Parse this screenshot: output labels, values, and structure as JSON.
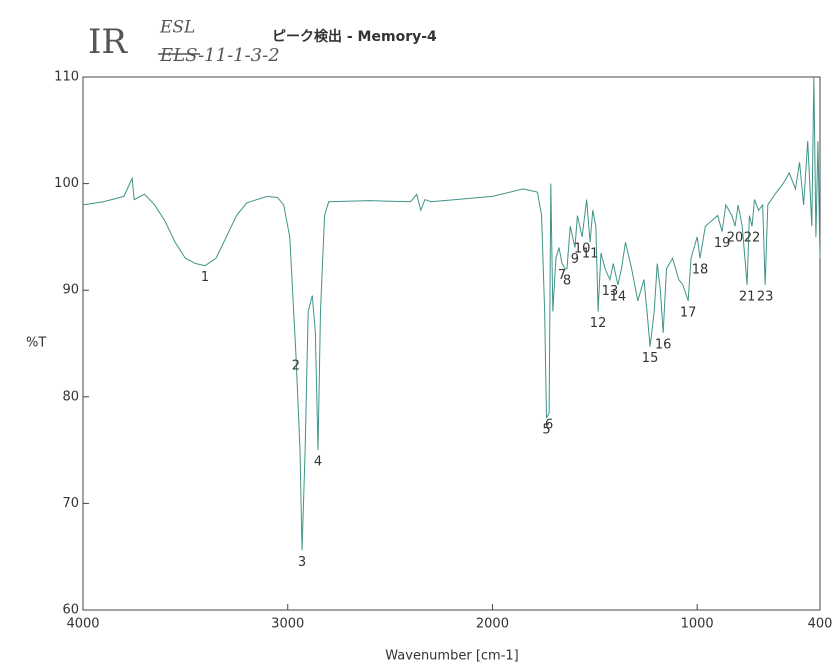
{
  "chart_data": {
    "type": "line",
    "title": "ピーク検出 - Memory-4",
    "handwritten_notes": [
      "IR",
      "ESL",
      "ELS-11-1-3-2"
    ],
    "xlabel": "Wavenumber [cm-1]",
    "ylabel": "%T",
    "xlim": [
      4000,
      400
    ],
    "xticks": [
      4000,
      3000,
      2000,
      1000,
      400
    ],
    "ylim": [
      60,
      110
    ],
    "yticks": [
      60,
      70,
      80,
      90,
      100,
      110
    ],
    "grid": false,
    "color": "#3f9488",
    "x": [
      4000,
      3900,
      3800,
      3760,
      3750,
      3700,
      3650,
      3600,
      3550,
      3500,
      3450,
      3404,
      3350,
      3300,
      3250,
      3200,
      3100,
      3050,
      3020,
      2990,
      2960,
      2940,
      2930,
      2915,
      2900,
      2880,
      2865,
      2852,
      2840,
      2820,
      2800,
      2600,
      2400,
      2370,
      2350,
      2330,
      2300,
      2000,
      1850,
      1780,
      1760,
      1745,
      1736,
      1723,
      1715,
      1705,
      1690,
      1675,
      1660,
      1645,
      1636,
      1620,
      1597,
      1585,
      1562,
      1540,
      1523,
      1510,
      1495,
      1484,
      1470,
      1450,
      1426,
      1410,
      1387,
      1370,
      1350,
      1320,
      1290,
      1260,
      1245,
      1230,
      1210,
      1195,
      1180,
      1166,
      1150,
      1120,
      1090,
      1070,
      1044,
      1030,
      1000,
      986,
      960,
      930,
      900,
      878,
      860,
      830,
      815,
      800,
      780,
      756,
      745,
      732,
      720,
      700,
      680,
      668,
      655,
      620,
      580,
      550,
      520,
      500,
      480,
      460,
      440,
      430,
      420,
      410,
      400
    ],
    "values": [
      98,
      98.3,
      98.8,
      100.5,
      98.5,
      99,
      98,
      96.5,
      94.5,
      93,
      92.5,
      92.3,
      93,
      95,
      97,
      98.2,
      98.8,
      98.7,
      98,
      95,
      84,
      75,
      65.6,
      75,
      88,
      89.5,
      86,
      75,
      88,
      97,
      98.3,
      98.4,
      98.3,
      99,
      97.5,
      98.5,
      98.3,
      98.8,
      99.5,
      99.2,
      97,
      88,
      78,
      78.5,
      100,
      88,
      93,
      94,
      92.5,
      92,
      92,
      96,
      94,
      97,
      95,
      98.5,
      94.5,
      97.5,
      96,
      88,
      93.5,
      92,
      91,
      92.5,
      90.5,
      92,
      94.5,
      92,
      89,
      91,
      88,
      84.7,
      88,
      92.5,
      90,
      86,
      92,
      93,
      91,
      90.5,
      89,
      93,
      95,
      93,
      96,
      96.5,
      97,
      95.5,
      98,
      97,
      96,
      98,
      96,
      90.5,
      97,
      96,
      98.5,
      97.5,
      98,
      90.5,
      98,
      99,
      100,
      101,
      99.5,
      102,
      98,
      104,
      96,
      110,
      95,
      104,
      93
    ],
    "peaks": [
      {
        "label": "1",
        "x": 3404,
        "y": 92.3
      },
      {
        "label": "2",
        "x": 2960,
        "y": 84
      },
      {
        "label": "3",
        "x": 2930,
        "y": 65.6
      },
      {
        "label": "4",
        "x": 2852,
        "y": 75
      },
      {
        "label": "5",
        "x": 1736,
        "y": 78
      },
      {
        "label": "6",
        "x": 1723,
        "y": 78.5
      },
      {
        "label": "7",
        "x": 1660,
        "y": 92.5
      },
      {
        "label": "8",
        "x": 1636,
        "y": 92
      },
      {
        "label": "9",
        "x": 1597,
        "y": 94
      },
      {
        "label": "10",
        "x": 1562,
        "y": 95
      },
      {
        "label": "11",
        "x": 1523,
        "y": 94.5
      },
      {
        "label": "12",
        "x": 1484,
        "y": 88
      },
      {
        "label": "13",
        "x": 1426,
        "y": 91
      },
      {
        "label": "14",
        "x": 1387,
        "y": 90.5
      },
      {
        "label": "15",
        "x": 1230,
        "y": 84.7
      },
      {
        "label": "16",
        "x": 1166,
        "y": 86
      },
      {
        "label": "17",
        "x": 1044,
        "y": 89
      },
      {
        "label": "18",
        "x": 986,
        "y": 93
      },
      {
        "label": "19",
        "x": 878,
        "y": 95.5
      },
      {
        "label": "20",
        "x": 815,
        "y": 96
      },
      {
        "label": "21",
        "x": 756,
        "y": 90.5
      },
      {
        "label": "22",
        "x": 732,
        "y": 96
      },
      {
        "label": "23",
        "x": 668,
        "y": 90.5
      }
    ]
  }
}
